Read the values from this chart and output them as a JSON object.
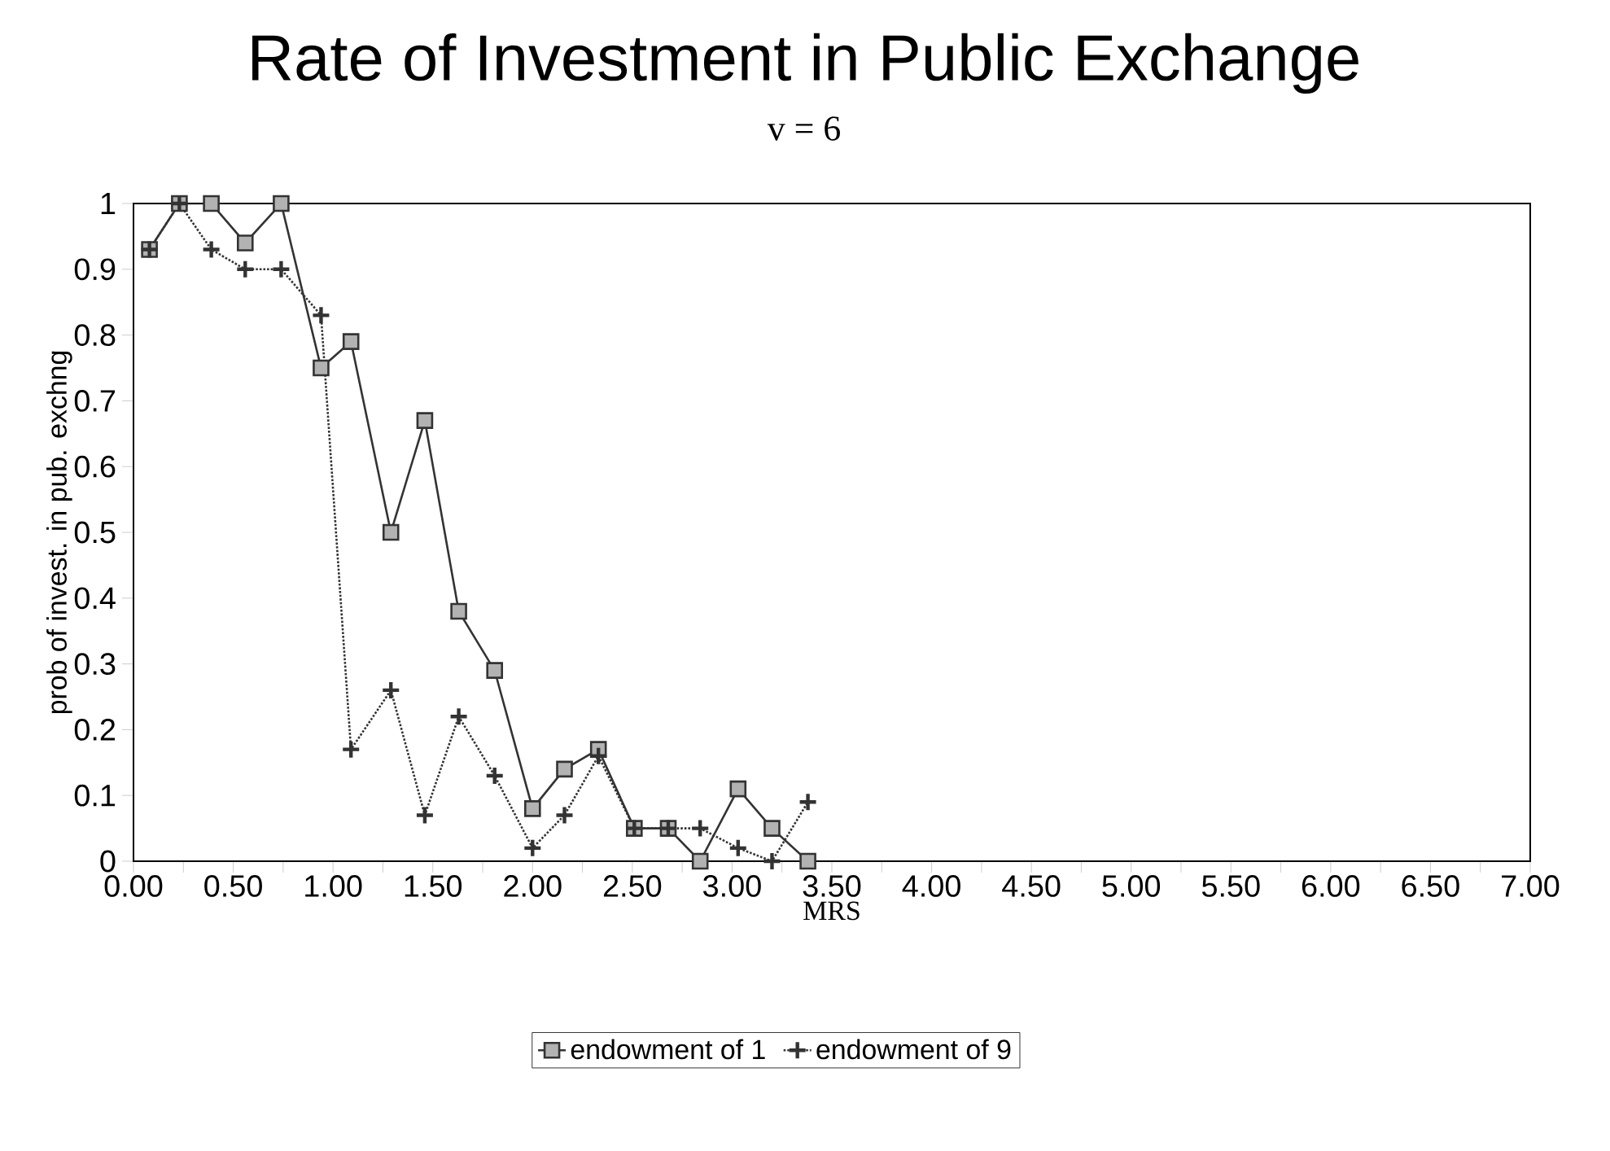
{
  "chart_data": {
    "type": "line",
    "title": "Rate of Investment in Public Exchange",
    "subtitle": "v = 6",
    "xlabel": "MRS",
    "ylabel": "prob of invest. in pub. exchng",
    "x": [
      0.08,
      0.23,
      0.39,
      0.56,
      0.74,
      0.94,
      1.09,
      1.29,
      1.46,
      1.63,
      1.81,
      2.0,
      2.16,
      2.33,
      2.51,
      2.68,
      2.84,
      3.03,
      3.2,
      3.38
    ],
    "series": [
      {
        "name": "endowment of 1",
        "color": "#333333",
        "marker": "square",
        "line_style": "solid",
        "values": [
          0.93,
          1.0,
          1.0,
          0.94,
          1.0,
          0.75,
          0.79,
          0.5,
          0.67,
          0.38,
          0.29,
          0.08,
          0.14,
          0.17,
          0.05,
          0.05,
          0.0,
          0.11,
          0.05,
          0.0
        ]
      },
      {
        "name": "endowment of 9",
        "color": "#333333",
        "marker": "cross",
        "line_style": "dotted",
        "values": [
          0.93,
          1.0,
          0.93,
          0.9,
          0.9,
          0.83,
          0.17,
          0.26,
          0.07,
          0.22,
          0.13,
          0.02,
          0.07,
          0.16,
          0.05,
          0.05,
          0.05,
          0.02,
          0.0,
          0.09
        ]
      }
    ],
    "xlim": [
      0,
      7
    ],
    "ylim": [
      0,
      1
    ],
    "xticks": [
      {
        "value": 0,
        "label": "0.00"
      },
      {
        "value": 0.25,
        "label": null
      },
      {
        "value": 0.5,
        "label": "0.50"
      },
      {
        "value": 0.75,
        "label": null
      },
      {
        "value": 1,
        "label": "1.00"
      },
      {
        "value": 1.25,
        "label": null
      },
      {
        "value": 1.5,
        "label": "1.50"
      },
      {
        "value": 1.75,
        "label": null
      },
      {
        "value": 2,
        "label": "2.00"
      },
      {
        "value": 2.25,
        "label": null
      },
      {
        "value": 2.5,
        "label": "2.50"
      },
      {
        "value": 2.75,
        "label": null
      },
      {
        "value": 3,
        "label": "3.00"
      },
      {
        "value": 3.25,
        "label": null
      },
      {
        "value": 3.5,
        "label": "3.50"
      },
      {
        "value": 3.75,
        "label": null
      },
      {
        "value": 4,
        "label": "4.00"
      },
      {
        "value": 4.25,
        "label": null
      },
      {
        "value": 4.5,
        "label": "4.50"
      },
      {
        "value": 4.75,
        "label": null
      },
      {
        "value": 5,
        "label": "5.00"
      },
      {
        "value": 5.25,
        "label": null
      },
      {
        "value": 5.5,
        "label": "5.50"
      },
      {
        "value": 5.75,
        "label": null
      },
      {
        "value": 6,
        "label": "6.00"
      },
      {
        "value": 6.25,
        "label": null
      },
      {
        "value": 6.5,
        "label": "6.50"
      },
      {
        "value": 6.75,
        "label": null
      },
      {
        "value": 7,
        "label": "7.00"
      }
    ],
    "yticks": [
      0,
      0.1,
      0.2,
      0.3,
      0.4,
      0.5,
      0.6,
      0.7,
      0.8,
      0.9,
      1
    ],
    "grid": false,
    "legend": "bottom"
  }
}
